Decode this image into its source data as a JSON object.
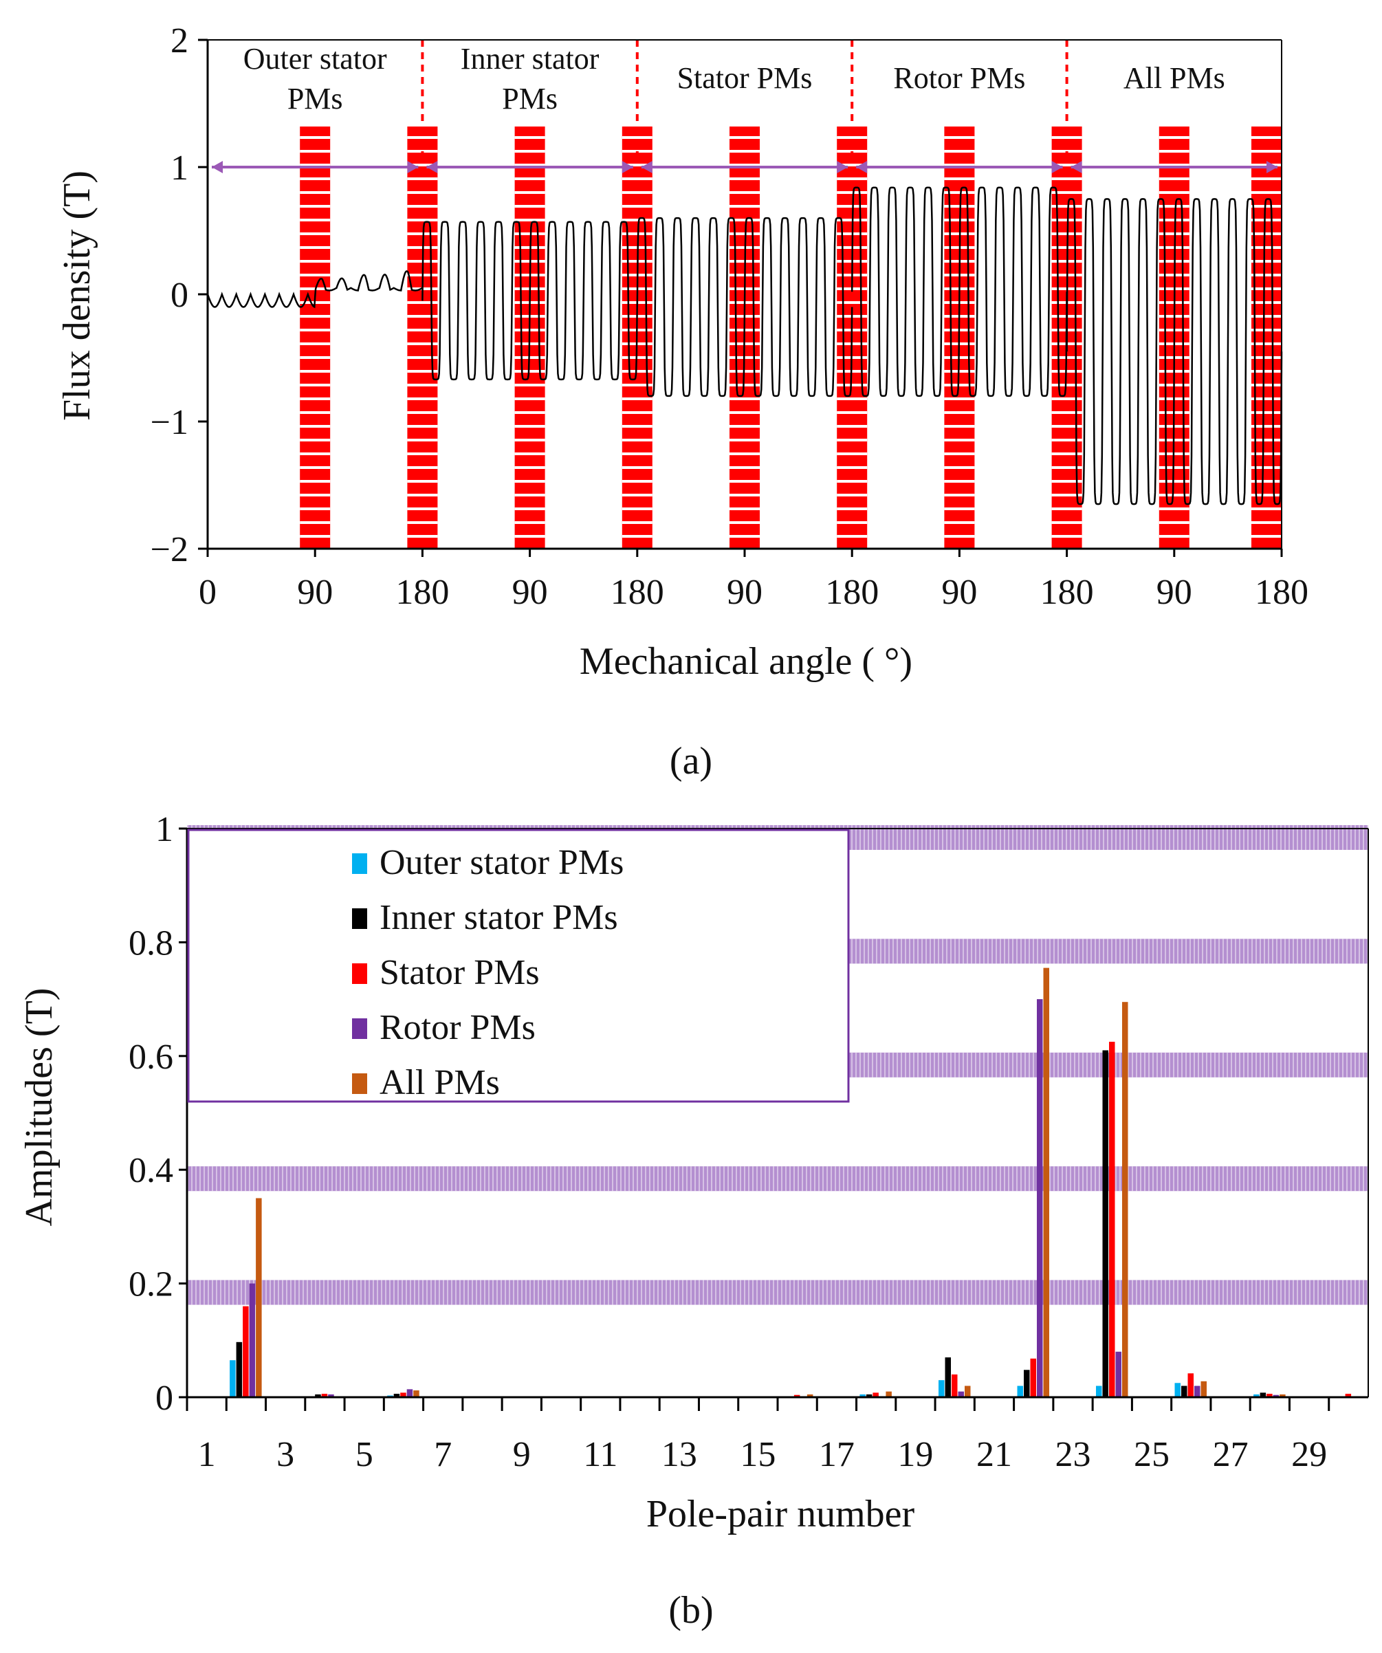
{
  "chart_data": [
    {
      "type": "line",
      "panel_label": "(a)",
      "xlabel": "Mechanical angle ( °)",
      "ylabel": "Flux density (T)",
      "ylim": [
        -2,
        2
      ],
      "yticks": [
        "2",
        "1",
        "0",
        "−1",
        "−2"
      ],
      "ytick_values": [
        2,
        1,
        0,
        -1,
        -2
      ],
      "xticks": [
        "0",
        "90",
        "180",
        "90",
        "180",
        "90",
        "180",
        "90",
        "180",
        "90",
        "180"
      ],
      "xlim": [
        0,
        900
      ],
      "grid": false,
      "highlight_color": "#ff0000",
      "arrow_color": "#9b59b6",
      "line_color": "#000000",
      "regions": [
        {
          "label_line1": "Outer stator",
          "label_line2": "PMs",
          "span": [
            0,
            180
          ],
          "trace": {
            "offset": 0.0,
            "amplitude": 0.1,
            "period": 12,
            "kind": "small"
          }
        },
        {
          "label_line1": "Inner stator",
          "label_line2": "PMs",
          "span": [
            180,
            360
          ],
          "trace": {
            "offset": -0.05,
            "amplitude": 0.62,
            "period": 15,
            "kind": "square"
          }
        },
        {
          "label_line1": "Stator PMs",
          "label_line2": "",
          "span": [
            360,
            540
          ],
          "trace": {
            "offset": -0.1,
            "amplitude": 0.7,
            "period": 15,
            "kind": "square"
          }
        },
        {
          "label_line1": "Rotor PMs",
          "label_line2": "",
          "span": [
            540,
            720
          ],
          "trace": {
            "offset": 0.02,
            "amplitude": 0.82,
            "period": 15,
            "kind": "square"
          }
        },
        {
          "label_line1": "All PMs",
          "label_line2": "",
          "span": [
            720,
            900
          ],
          "trace": {
            "offset": -0.45,
            "amplitude": 1.2,
            "period": 15,
            "kind": "square"
          }
        }
      ],
      "region_arrow_y": 1.0,
      "highlight_band_centers_deg": [
        90,
        180
      ]
    },
    {
      "type": "bar",
      "panel_label": "(b)",
      "xlabel": "Pole-pair number",
      "ylabel": "Amplitudes (T)",
      "ylim": [
        0,
        1
      ],
      "yticks": [
        "1",
        "0.8",
        "0.6",
        "0.4",
        "0.2",
        "0"
      ],
      "ytick_values": [
        1,
        0.8,
        0.6,
        0.4,
        0.2,
        0
      ],
      "xticks": [
        "1",
        "3",
        "5",
        "7",
        "9",
        "11",
        "13",
        "15",
        "17",
        "19",
        "21",
        "23",
        "25",
        "27",
        "29"
      ],
      "xlim": [
        0.5,
        30.5
      ],
      "grid": false,
      "gridline_values": [
        1.0,
        0.8,
        0.6,
        0.4,
        0.2
      ],
      "gridline_color": "#b48fd0",
      "legend_position": "top-left",
      "series": [
        {
          "name": "Outer stator PMs",
          "color": "#00b0f0",
          "points": [
            [
              2,
              0.065
            ],
            [
              6,
              0.003
            ],
            [
              18,
              0.005
            ],
            [
              20,
              0.03
            ],
            [
              22,
              0.02
            ],
            [
              24,
              0.02
            ],
            [
              26,
              0.025
            ],
            [
              28,
              0.005
            ]
          ]
        },
        {
          "name": "Inner stator PMs",
          "color": "#000000",
          "points": [
            [
              2,
              0.097
            ],
            [
              4,
              0.005
            ],
            [
              6,
              0.006
            ],
            [
              18,
              0.005
            ],
            [
              20,
              0.07
            ],
            [
              22,
              0.048
            ],
            [
              24,
              0.61
            ],
            [
              26,
              0.02
            ],
            [
              28,
              0.008
            ]
          ]
        },
        {
          "name": "Stator PMs",
          "color": "#ff0000",
          "points": [
            [
              2,
              0.16
            ],
            [
              4,
              0.006
            ],
            [
              6,
              0.008
            ],
            [
              16,
              0.004
            ],
            [
              18,
              0.008
            ],
            [
              20,
              0.04
            ],
            [
              22,
              0.068
            ],
            [
              24,
              0.625
            ],
            [
              26,
              0.042
            ],
            [
              28,
              0.006
            ],
            [
              30,
              0.006
            ]
          ]
        },
        {
          "name": "Rotor PMs",
          "color": "#7030a0",
          "points": [
            [
              2,
              0.2
            ],
            [
              4,
              0.005
            ],
            [
              6,
              0.014
            ],
            [
              20,
              0.01
            ],
            [
              22,
              0.7
            ],
            [
              24,
              0.08
            ],
            [
              26,
              0.02
            ],
            [
              28,
              0.004
            ]
          ]
        },
        {
          "name": "All PMs",
          "color": "#c55a11",
          "points": [
            [
              2,
              0.35
            ],
            [
              6,
              0.012
            ],
            [
              16,
              0.005
            ],
            [
              18,
              0.01
            ],
            [
              20,
              0.02
            ],
            [
              22,
              0.755
            ],
            [
              24,
              0.695
            ],
            [
              26,
              0.028
            ],
            [
              28,
              0.005
            ]
          ]
        }
      ]
    }
  ]
}
